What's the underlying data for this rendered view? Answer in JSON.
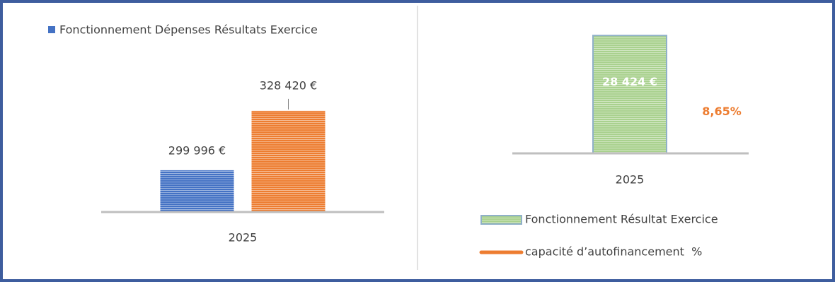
{
  "chart_data": [
    {
      "type": "bar",
      "categories": [
        "2025"
      ],
      "series": [
        {
          "name": "Fonctionnement Dépenses Résultats Exercice",
          "color": "#4472c4",
          "values": [
            299996
          ],
          "value_labels": [
            "299 996 €"
          ]
        },
        {
          "color": "#ed7d31",
          "values": [
            328420
          ],
          "value_labels": [
            "328 420 €"
          ]
        }
      ],
      "ylim": [
        280000,
        370000
      ]
    },
    {
      "type": "combo",
      "categories": [
        "2025"
      ],
      "series": [
        {
          "name": "Fonctionnement Résultat Exercice",
          "type": "bar",
          "color": "#a9d18e",
          "values": [
            28424
          ],
          "value_labels": [
            "28 424 €"
          ]
        },
        {
          "name": "capacité d’autofinancement  %",
          "type": "line",
          "axis": "y2",
          "color": "#ed7d31",
          "values": [
            8.65
          ],
          "value_labels": [
            "8,65%"
          ]
        }
      ],
      "ylim": [
        0,
        30000
      ],
      "y2lim": [
        0,
        26
      ]
    }
  ]
}
